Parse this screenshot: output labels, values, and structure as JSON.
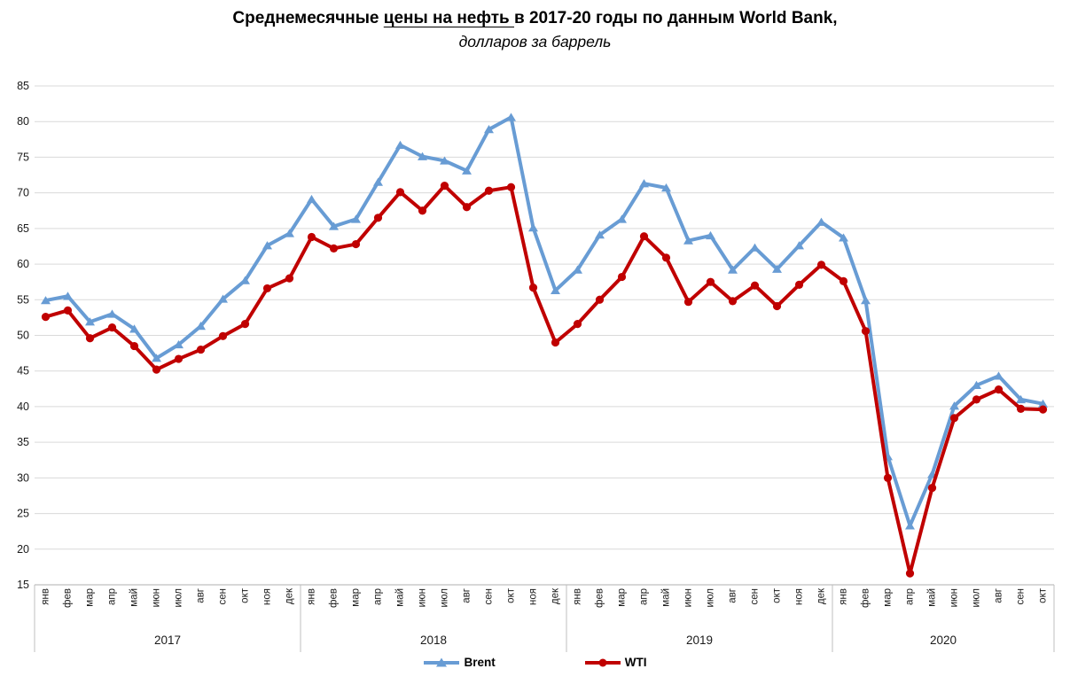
{
  "title": {
    "prefix": "Среднемесячные ",
    "underlined": "цены на нефть ",
    "suffix": "в 2017-20 годы по данным World Bank,",
    "subtitle": "долларов за баррель"
  },
  "legend": {
    "brent_label": "Brent",
    "wti_label": "WTI"
  },
  "colors": {
    "brent": "#689CD4",
    "wti": "#C00000",
    "gridline": "#D9D9D9",
    "axis": "#BFBFBF",
    "label_text": "#1a1a1a"
  },
  "chart_data": {
    "type": "line",
    "title": "Среднемесячные цены на нефть в 2017-20 годы по данным World Bank, долларов за баррель",
    "xlabel": "",
    "ylabel": "",
    "grid": true,
    "legend_position": "bottom",
    "y_axis": {
      "min": 15,
      "max": 85,
      "step": 5
    },
    "month_labels": [
      "янв",
      "фев",
      "мар",
      "апр",
      "май",
      "июн",
      "июл",
      "авг",
      "сен",
      "окт",
      "ноя",
      "дек"
    ],
    "year_groups": [
      {
        "label": "2017",
        "n_months": 12
      },
      {
        "label": "2018",
        "n_months": 12
      },
      {
        "label": "2019",
        "n_months": 12
      },
      {
        "label": "2020",
        "n_months": 10
      }
    ],
    "series": [
      {
        "name": "Brent",
        "color": "#689CD4",
        "marker": "triangle",
        "values": [
          54.9,
          55.5,
          51.9,
          53.0,
          50.9,
          46.8,
          48.7,
          51.3,
          55.1,
          57.7,
          62.6,
          64.3,
          69.1,
          65.3,
          66.3,
          71.5,
          76.7,
          75.1,
          74.5,
          73.1,
          78.9,
          80.6,
          65.1,
          56.3,
          59.2,
          64.1,
          66.3,
          71.3,
          70.7,
          63.3,
          64.0,
          59.2,
          62.3,
          59.3,
          62.6,
          65.9,
          63.7,
          54.9,
          33.0,
          23.3,
          30.5,
          40.1,
          43.0,
          44.3,
          41.0,
          40.4
        ]
      },
      {
        "name": "WTI",
        "color": "#C00000",
        "marker": "circle",
        "values": [
          52.6,
          53.5,
          49.6,
          51.1,
          48.5,
          45.2,
          46.7,
          48.0,
          49.9,
          51.6,
          56.6,
          58.0,
          63.8,
          62.2,
          62.8,
          66.5,
          70.1,
          67.5,
          71.0,
          68.0,
          70.3,
          70.8,
          56.7,
          49.0,
          51.6,
          55.0,
          58.2,
          63.9,
          60.9,
          54.7,
          57.5,
          54.8,
          57.0,
          54.1,
          57.1,
          59.9,
          57.6,
          50.6,
          30.0,
          16.6,
          28.6,
          38.4,
          41.0,
          42.4,
          39.7,
          39.6
        ]
      }
    ]
  }
}
